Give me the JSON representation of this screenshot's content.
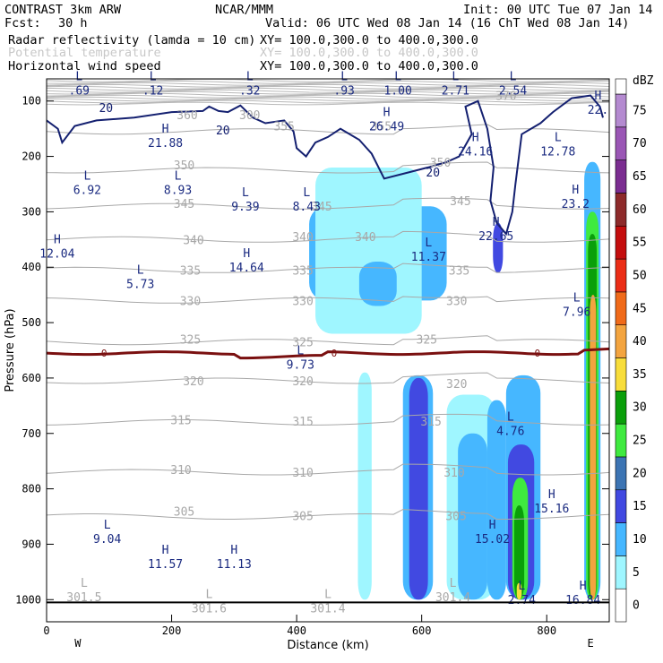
{
  "header": {
    "model": "CONTRAST  3km ARW",
    "center": "NCAR/MMM",
    "init": "Init: 00 UTC Tue 07 Jan 14",
    "fcst_label": "Fcst:",
    "fcst_value": "30 h",
    "valid": "Valid: 06 UTC Wed 08 Jan 14 (16 ChT Wed 08 Jan 14)",
    "fields": [
      {
        "name": "Radar reflectivity (lamda = 10 cm)",
        "xy": "XY= 100.0,300.0 to 400.0,300.0",
        "color": "#000000"
      },
      {
        "name": "Potential temperature",
        "xy": "XY= 100.0,300.0 to 400.0,300.0",
        "color": "#c0c0c0"
      },
      {
        "name": "Horizontal wind speed",
        "xy": "XY= 100.0,300.0 to 400.0,300.0",
        "color": "#000000"
      }
    ]
  },
  "chart_data": {
    "type": "heatmap",
    "title": "Radar reflectivity / Potential temperature / Horizontal wind speed cross-section",
    "xlabel": "Distance (km)",
    "ylabel": "Pressure (hPa)",
    "xlim": [
      0,
      900
    ],
    "ylim": [
      1040,
      60
    ],
    "x_ticks": [
      0,
      200,
      400,
      600,
      800
    ],
    "y_ticks": [
      100,
      200,
      300,
      400,
      500,
      600,
      700,
      800,
      900,
      1000
    ],
    "x_end_labels": {
      "left": "W",
      "right": "E"
    },
    "colorbar": {
      "unit": "dBZ",
      "levels": [
        0,
        5,
        10,
        15,
        20,
        25,
        30,
        35,
        40,
        45,
        50,
        55,
        60,
        65,
        70,
        75
      ],
      "colors": [
        "#ffffff",
        "#9ff6ff",
        "#46b7ff",
        "#4149e1",
        "#3c74b3",
        "#3fea3f",
        "#0a9f0a",
        "#f8dd3a",
        "#f3a43f",
        "#f06a19",
        "#eb2d16",
        "#c40d0d",
        "#8d2a2a",
        "#7b2d91",
        "#9a56b5",
        "#b48ad0"
      ]
    },
    "reflectivity_cells": [
      {
        "x": [
          420,
          640
        ],
        "p": [
          290,
          460
        ],
        "dbz": 10
      },
      {
        "x": [
          430,
          600
        ],
        "p": [
          220,
          520
        ],
        "dbz": 5
      },
      {
        "x": [
          500,
          560
        ],
        "p": [
          390,
          470
        ],
        "dbz": 10
      },
      {
        "x": [
          714,
          730
        ],
        "p": [
          320,
          410
        ],
        "dbz": 15
      },
      {
        "x": [
          860,
          886
        ],
        "p": [
          210,
          1000
        ],
        "dbz": 10
      },
      {
        "x": [
          863,
          883
        ],
        "p": [
          300,
          1000
        ],
        "dbz": 25
      },
      {
        "x": [
          866,
          880
        ],
        "p": [
          340,
          1000
        ],
        "dbz": 30
      },
      {
        "x": [
          869,
          879
        ],
        "p": [
          450,
          1000
        ],
        "dbz": 40
      },
      {
        "x": [
          498,
          520
        ],
        "p": [
          590,
          1000
        ],
        "dbz": 5
      },
      {
        "x": [
          570,
          618
        ],
        "p": [
          595,
          1000
        ],
        "dbz": 10
      },
      {
        "x": [
          580,
          610
        ],
        "p": [
          600,
          1000
        ],
        "dbz": 15
      },
      {
        "x": [
          640,
          718
        ],
        "p": [
          630,
          1000
        ],
        "dbz": 5
      },
      {
        "x": [
          658,
          705
        ],
        "p": [
          700,
          1000
        ],
        "dbz": 10
      },
      {
        "x": [
          705,
          735
        ],
        "p": [
          640,
          1000
        ],
        "dbz": 10
      },
      {
        "x": [
          735,
          790
        ],
        "p": [
          595,
          1000
        ],
        "dbz": 10
      },
      {
        "x": [
          738,
          780
        ],
        "p": [
          720,
          1000
        ],
        "dbz": 15
      },
      {
        "x": [
          745,
          770
        ],
        "p": [
          780,
          1000
        ],
        "dbz": 25
      },
      {
        "x": [
          748,
          764
        ],
        "p": [
          830,
          1000
        ],
        "dbz": 30
      },
      {
        "x": [
          752,
          760
        ],
        "p": [
          970,
          1000
        ],
        "dbz": 35
      }
    ],
    "theta_contours": [
      {
        "value": "355",
        "p": 155
      },
      {
        "value": "350",
        "p": 225
      },
      {
        "value": "345",
        "p": 290
      },
      {
        "value": "340",
        "p": 350
      },
      {
        "value": "335",
        "p": 405
      },
      {
        "value": "330",
        "p": 460
      },
      {
        "value": "325",
        "p": 535
      },
      {
        "value": "320",
        "p": 605
      },
      {
        "value": "315",
        "p": 680
      },
      {
        "value": "310",
        "p": 770
      },
      {
        "value": "305",
        "p": 850
      }
    ],
    "theta_labels": [
      {
        "text": "360",
        "x": 225,
        "p": 125
      },
      {
        "text": "355",
        "x": 380,
        "p": 145
      },
      {
        "text": "370",
        "x": 735,
        "p": 90
      },
      {
        "text": "350",
        "x": 220,
        "p": 215
      },
      {
        "text": "345",
        "x": 220,
        "p": 285
      },
      {
        "text": "340",
        "x": 235,
        "p": 350
      },
      {
        "text": "335",
        "x": 230,
        "p": 405
      },
      {
        "text": "330",
        "x": 230,
        "p": 460
      },
      {
        "text": "325",
        "x": 230,
        "p": 530
      },
      {
        "text": "320",
        "x": 235,
        "p": 605
      },
      {
        "text": "315",
        "x": 215,
        "p": 675
      },
      {
        "text": "310",
        "x": 215,
        "p": 765
      },
      {
        "text": "305",
        "x": 220,
        "p": 840
      },
      {
        "text": "300",
        "x": 325,
        "p": 125
      },
      {
        "text": "355",
        "x": 535,
        "p": 145
      },
      {
        "text": "350",
        "x": 630,
        "p": 210
      },
      {
        "text": "345",
        "x": 440,
        "p": 290
      },
      {
        "text": "340",
        "x": 410,
        "p": 345
      },
      {
        "text": "340",
        "x": 510,
        "p": 345
      },
      {
        "text": "345",
        "x": 662,
        "p": 280
      },
      {
        "text": "335",
        "x": 410,
        "p": 405
      },
      {
        "text": "335",
        "x": 660,
        "p": 405
      },
      {
        "text": "330",
        "x": 410,
        "p": 460
      },
      {
        "text": "330",
        "x": 656,
        "p": 460
      },
      {
        "text": "325",
        "x": 410,
        "p": 535
      },
      {
        "text": "325",
        "x": 608,
        "p": 530
      },
      {
        "text": "320",
        "x": 410,
        "p": 605
      },
      {
        "text": "320",
        "x": 656,
        "p": 610
      },
      {
        "text": "315",
        "x": 410,
        "p": 678
      },
      {
        "text": "315",
        "x": 615,
        "p": 678
      },
      {
        "text": "310",
        "x": 410,
        "p": 770
      },
      {
        "text": "310",
        "x": 652,
        "p": 770
      },
      {
        "text": "305",
        "x": 410,
        "p": 848
      },
      {
        "text": "305",
        "x": 655,
        "p": 848
      }
    ],
    "wind_contours": [
      {
        "value": "20",
        "label_x": 95,
        "label_p": 120
      },
      {
        "value": "20",
        "label_x": 282,
        "label_p": 160
      },
      {
        "value": "20",
        "label_x": 618,
        "label_p": 236
      }
    ],
    "freezing_level": {
      "value": "0",
      "p": 555,
      "label_xs": [
        92,
        460,
        785
      ]
    },
    "extrema": [
      {
        "type": "L",
        "value": ".69",
        "x": 52,
        "p": 75
      },
      {
        "type": "L",
        "value": ".12",
        "x": 170,
        "p": 75
      },
      {
        "type": "L",
        "value": ".32",
        "x": 325,
        "p": 75
      },
      {
        "type": "L",
        "value": ".93",
        "x": 476,
        "p": 75
      },
      {
        "type": "L",
        "value": "1.00",
        "x": 562,
        "p": 75
      },
      {
        "type": "L",
        "value": "2.71",
        "x": 654,
        "p": 75
      },
      {
        "type": "L",
        "value": "2.54",
        "x": 746,
        "p": 75
      },
      {
        "type": "H",
        "value": "22.",
        "x": 882,
        "p": 110
      },
      {
        "type": "H",
        "value": "26.49",
        "x": 544,
        "p": 140
      },
      {
        "type": "H",
        "value": "21.88",
        "x": 190,
        "p": 170
      },
      {
        "type": "H",
        "value": "24.16",
        "x": 686,
        "p": 185
      },
      {
        "type": "L",
        "value": "12.78",
        "x": 818,
        "p": 185
      },
      {
        "type": "L",
        "value": "6.92",
        "x": 65,
        "p": 255
      },
      {
        "type": "L",
        "value": "8.93",
        "x": 210,
        "p": 255
      },
      {
        "type": "L",
        "value": "9.39",
        "x": 318,
        "p": 285
      },
      {
        "type": "L",
        "value": "8.43",
        "x": 416,
        "p": 285
      },
      {
        "type": "H",
        "value": "23.2",
        "x": 846,
        "p": 280
      },
      {
        "type": "H",
        "value": "22.65",
        "x": 719,
        "p": 338
      },
      {
        "type": "H",
        "value": "12.04",
        "x": 17,
        "p": 370
      },
      {
        "type": "L",
        "value": "11.37",
        "x": 611,
        "p": 375
      },
      {
        "type": "H",
        "value": "14.64",
        "x": 320,
        "p": 395
      },
      {
        "type": "L",
        "value": "5.73",
        "x": 150,
        "p": 425
      },
      {
        "type": "L",
        "value": "7.96",
        "x": 848,
        "p": 475
      },
      {
        "type": "L",
        "value": "9.73",
        "x": 406,
        "p": 570
      },
      {
        "type": "L",
        "value": "4.76",
        "x": 742,
        "p": 690
      },
      {
        "type": "H",
        "value": "15.16",
        "x": 808,
        "p": 830
      },
      {
        "type": "L",
        "value": "9.04",
        "x": 97,
        "p": 885
      },
      {
        "type": "H",
        "value": "15.02",
        "x": 713,
        "p": 885
      },
      {
        "type": "H",
        "value": "11.57",
        "x": 190,
        "p": 930
      },
      {
        "type": "H",
        "value": "11.13",
        "x": 300,
        "p": 930
      },
      {
        "type": "L",
        "value": "301.5",
        "x": 60,
        "p": 990
      },
      {
        "type": "L",
        "value": "301.6",
        "x": 260,
        "p": 1010
      },
      {
        "type": "L",
        "value": "301.4",
        "x": 450,
        "p": 1010
      },
      {
        "type": "L",
        "value": "301.4",
        "x": 650,
        "p": 990
      },
      {
        "type": "L",
        "value": "2.74",
        "x": 760,
        "p": 995
      },
      {
        "type": "H",
        "value": "16.84",
        "x": 858,
        "p": 995
      }
    ]
  }
}
